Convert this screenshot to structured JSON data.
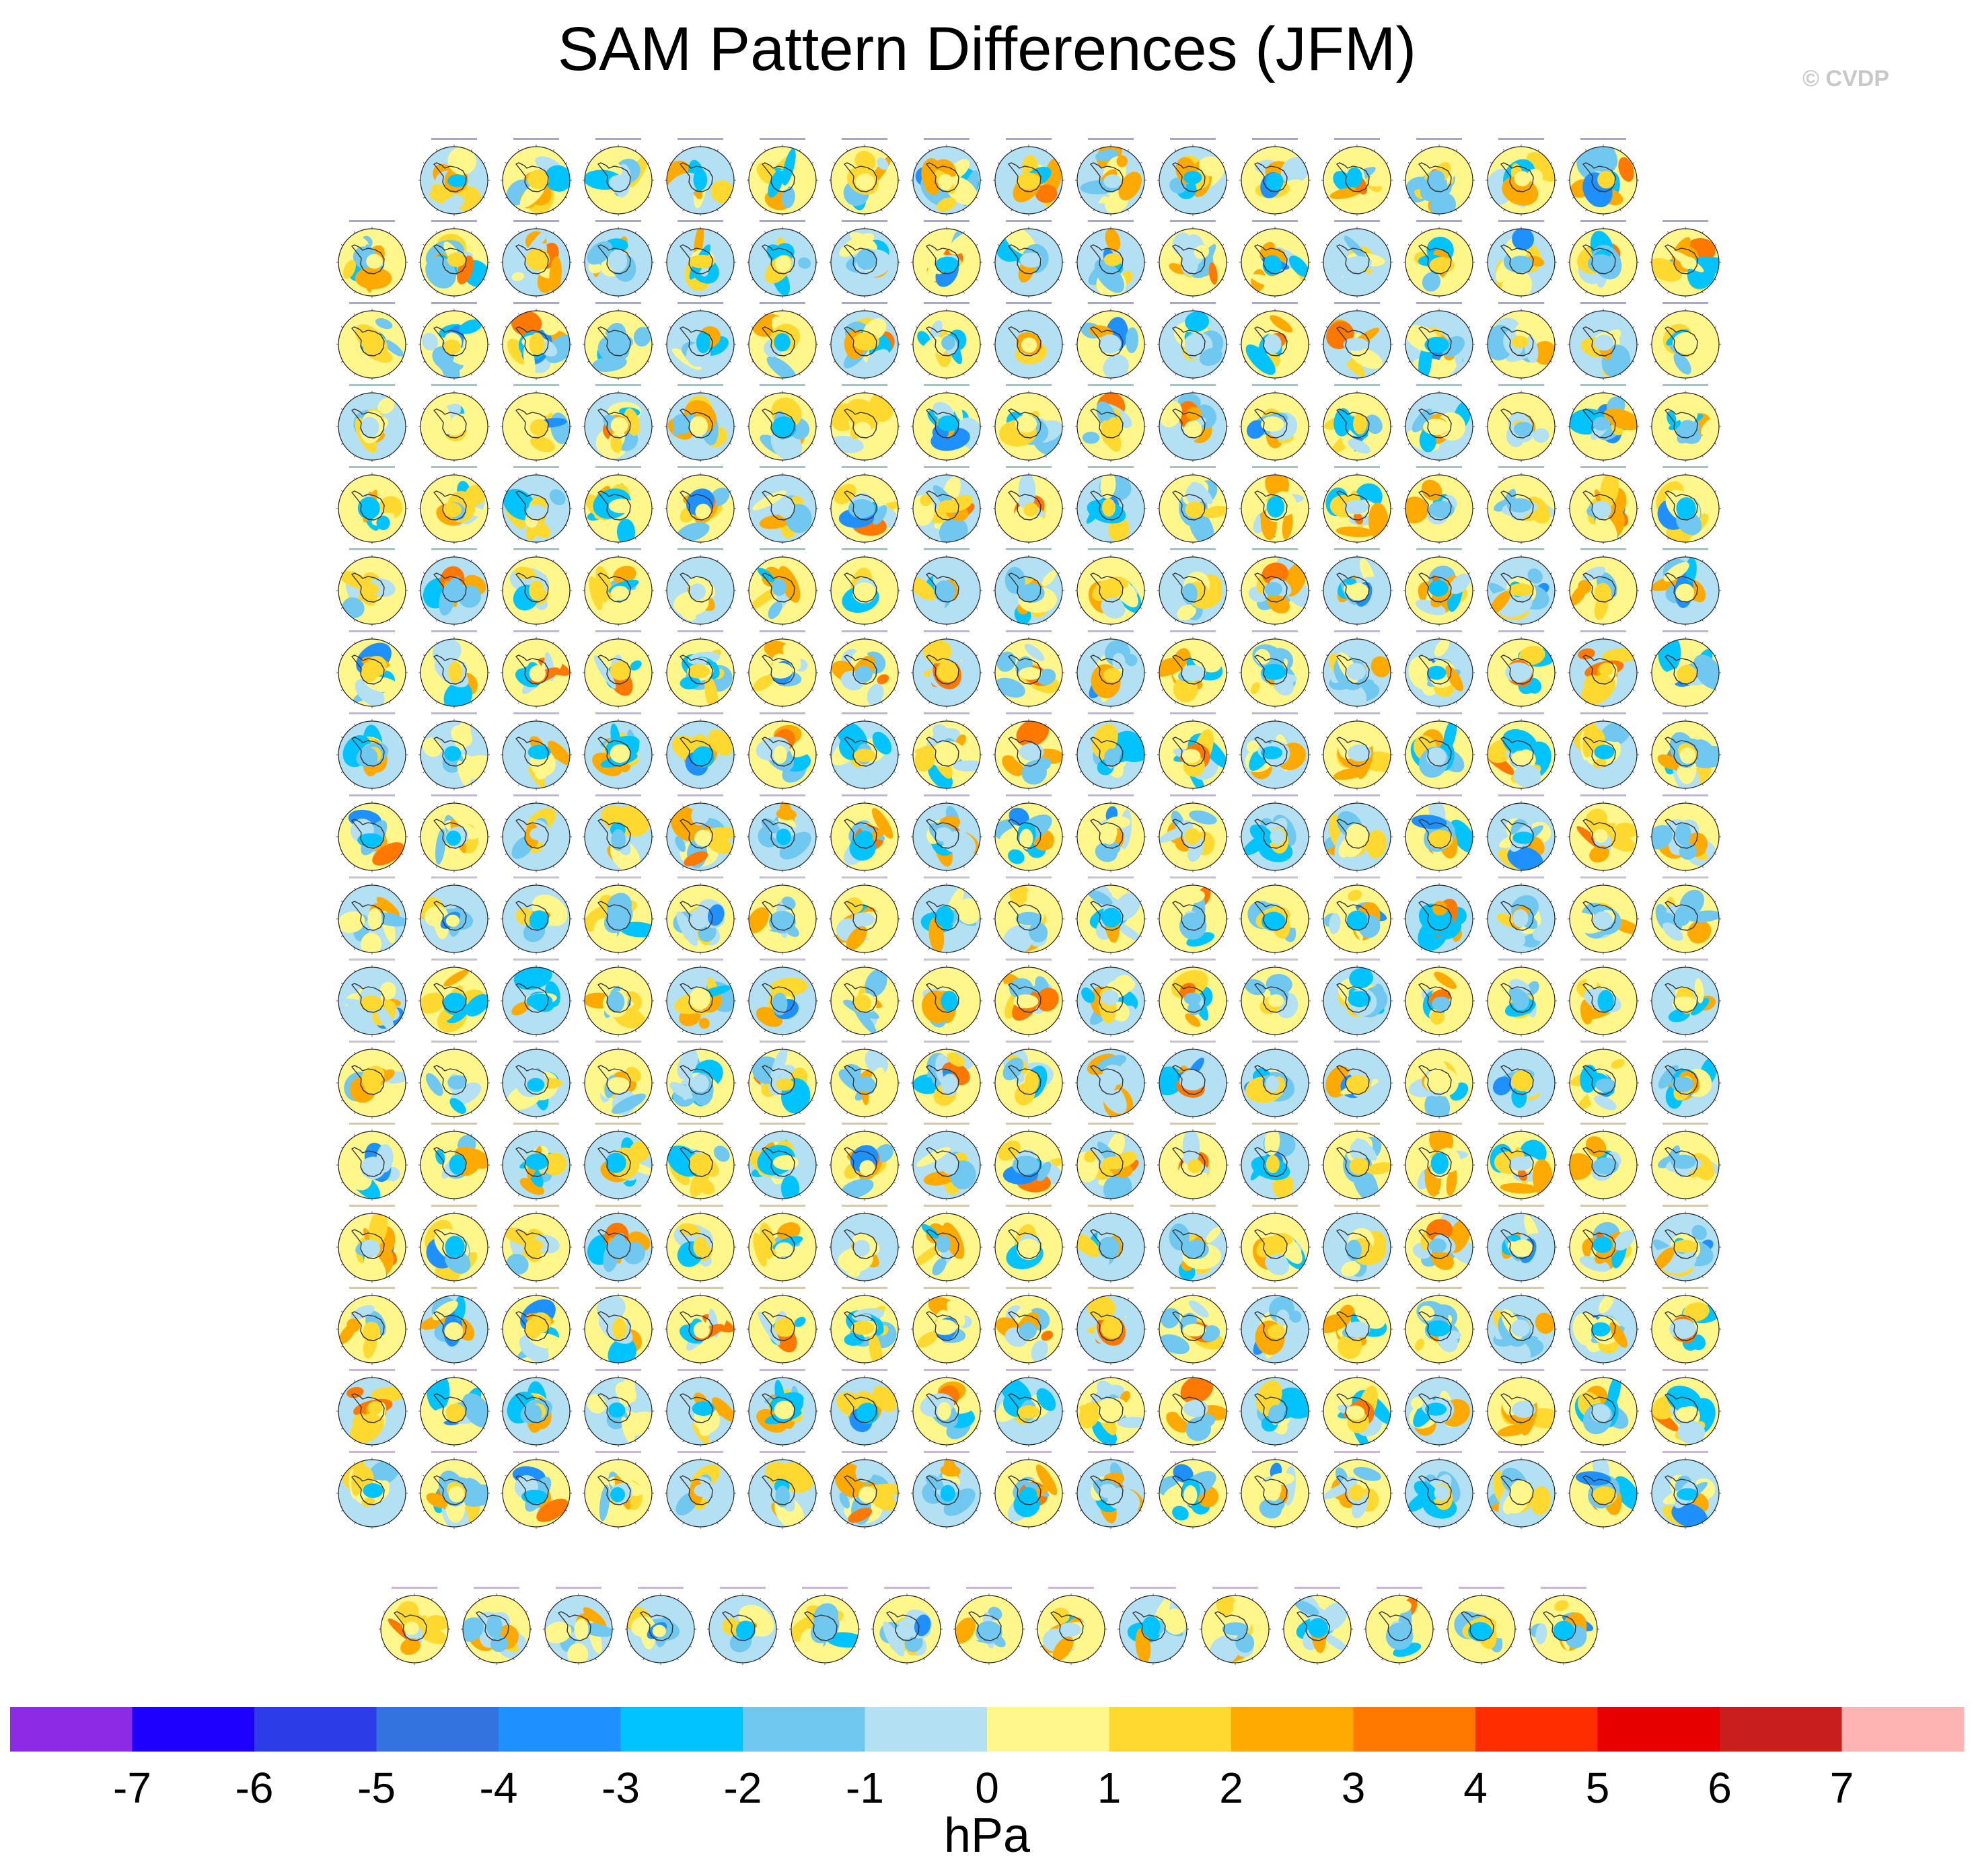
{
  "title": "SAM Pattern Differences (JFM)",
  "watermark": "© CVDP",
  "colorbar": {
    "units": "hPa",
    "colors": [
      "#8c2ae6",
      "#1e00ff",
      "#2c3de8",
      "#3273e0",
      "#1f90ff",
      "#00c3ff",
      "#70c8f0",
      "#b3e0f2",
      "#fff68c",
      "#ffd830",
      "#ffaa00",
      "#ff7800",
      "#ff2d00",
      "#e60000",
      "#c81e1e",
      "#ffb4b4"
    ],
    "tick_labels": [
      "-7",
      "-6",
      "-5",
      "-4",
      "-3",
      "-2",
      "-1",
      "0",
      "1",
      "2",
      "3",
      "4",
      "5",
      "6",
      "7"
    ]
  },
  "chart_data": {
    "type": "heatmap",
    "projection": "south-polar stereographic panels",
    "grid_rows": [
      15,
      17,
      17,
      17,
      17,
      17,
      17,
      17,
      17,
      17,
      17,
      17,
      17,
      17,
      17,
      17,
      17,
      15
    ],
    "panel_count": 302,
    "value_range": [
      -8,
      8
    ],
    "units": "hPa"
  }
}
